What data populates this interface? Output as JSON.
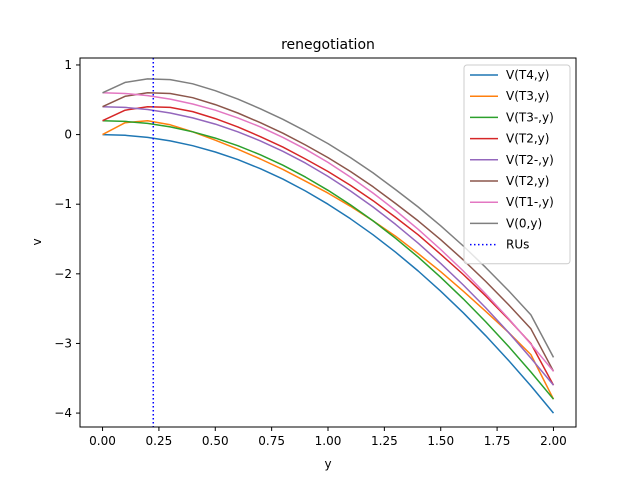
{
  "chart_data": {
    "type": "line",
    "title": "renegotiation",
    "xlabel": "y",
    "ylabel": "v",
    "xlim": [
      -0.1,
      2.1
    ],
    "ylim": [
      -4.2,
      1.1
    ],
    "xticks": [
      0.0,
      0.25,
      0.5,
      0.75,
      1.0,
      1.25,
      1.5,
      1.75,
      2.0
    ],
    "xtick_labels": [
      "0.00",
      "0.25",
      "0.50",
      "0.75",
      "1.00",
      "1.25",
      "1.50",
      "1.75",
      "2.00"
    ],
    "yticks": [
      -4,
      -3,
      -2,
      -1,
      0,
      1
    ],
    "ytick_labels": [
      "−4",
      "−3",
      "−2",
      "−1",
      "0",
      "1"
    ],
    "grid": false,
    "legend_position": "upper-right",
    "x": [
      0.0,
      0.1,
      0.2,
      0.3,
      0.4,
      0.5,
      0.6,
      0.7,
      0.8,
      0.9,
      1.0,
      1.1,
      1.2,
      1.3,
      1.4,
      1.5,
      1.6,
      1.7,
      1.8,
      1.9,
      2.0
    ],
    "series": [
      {
        "name": "V(T4,y)",
        "color": "#1f77b4",
        "values": [
          0.0,
          -0.01,
          -0.04,
          -0.09,
          -0.16,
          -0.25,
          -0.36,
          -0.49,
          -0.64,
          -0.81,
          -1.0,
          -1.21,
          -1.44,
          -1.69,
          -1.96,
          -2.25,
          -2.56,
          -2.89,
          -3.24,
          -3.61,
          -4.0
        ]
      },
      {
        "name": "V(T3,y)",
        "color": "#ff7f0e",
        "values": [
          0.0,
          0.17,
          0.2,
          0.14,
          0.04,
          -0.08,
          -0.21,
          -0.35,
          -0.5,
          -0.67,
          -0.84,
          -1.03,
          -1.24,
          -1.46,
          -1.71,
          -1.97,
          -2.25,
          -2.54,
          -2.84,
          -3.16,
          -3.8
        ]
      },
      {
        "name": "V(T3-,y)",
        "color": "#2ca02c",
        "values": [
          0.2,
          0.19,
          0.16,
          0.11,
          0.04,
          -0.05,
          -0.16,
          -0.29,
          -0.44,
          -0.61,
          -0.8,
          -1.01,
          -1.24,
          -1.49,
          -1.76,
          -2.05,
          -2.36,
          -2.69,
          -3.04,
          -3.41,
          -3.8
        ]
      },
      {
        "name": "V(T2,y)",
        "color": "#d62728",
        "values": [
          0.2,
          0.35,
          0.4,
          0.39,
          0.33,
          0.23,
          0.11,
          -0.03,
          -0.18,
          -0.35,
          -0.53,
          -0.73,
          -0.95,
          -1.19,
          -1.44,
          -1.72,
          -2.01,
          -2.32,
          -2.65,
          -3.0,
          -3.6
        ]
      },
      {
        "name": "V(T2-,y)",
        "color": "#9467bd",
        "values": [
          0.4,
          0.39,
          0.36,
          0.31,
          0.24,
          0.15,
          0.04,
          -0.09,
          -0.24,
          -0.41,
          -0.6,
          -0.81,
          -1.04,
          -1.29,
          -1.56,
          -1.85,
          -2.16,
          -2.49,
          -2.84,
          -3.21,
          -3.6
        ]
      },
      {
        "name": "V(T2,y)",
        "color": "#8c564b",
        "values": [
          0.4,
          0.55,
          0.6,
          0.59,
          0.53,
          0.43,
          0.31,
          0.17,
          0.02,
          -0.15,
          -0.33,
          -0.53,
          -0.75,
          -0.99,
          -1.24,
          -1.51,
          -1.8,
          -2.11,
          -2.44,
          -2.79,
          -3.4
        ]
      },
      {
        "name": "V(T1-,y)",
        "color": "#e377c2",
        "values": [
          0.6,
          0.59,
          0.56,
          0.51,
          0.44,
          0.35,
          0.24,
          0.11,
          -0.04,
          -0.21,
          -0.4,
          -0.61,
          -0.84,
          -1.09,
          -1.36,
          -1.65,
          -1.96,
          -2.29,
          -2.64,
          -3.01,
          -3.4
        ]
      },
      {
        "name": "V(0,y)",
        "color": "#7f7f7f",
        "values": [
          0.6,
          0.75,
          0.8,
          0.79,
          0.73,
          0.63,
          0.51,
          0.37,
          0.22,
          0.05,
          -0.13,
          -0.33,
          -0.55,
          -0.79,
          -1.04,
          -1.31,
          -1.6,
          -1.91,
          -2.24,
          -2.59,
          -3.2
        ]
      }
    ],
    "vline": {
      "name": "RUs",
      "x": 0.225,
      "color": "#0000ff",
      "style": "dotted"
    }
  }
}
